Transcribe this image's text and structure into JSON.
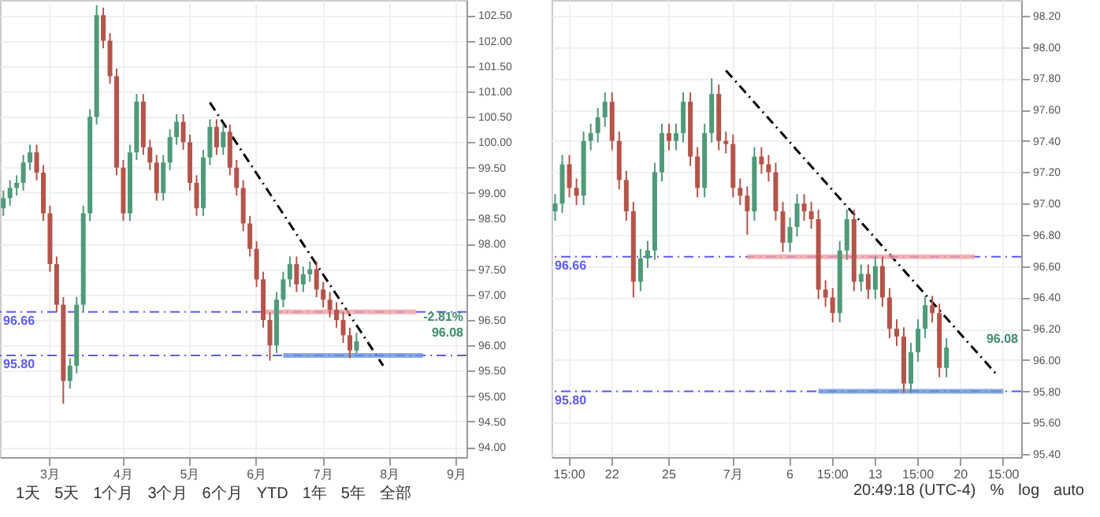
{
  "chart_data": [
    {
      "type": "candlestick",
      "categories": [
        null,
        null,
        null,
        null,
        null,
        null,
        null,
        "3月",
        null,
        null,
        null,
        null,
        null,
        null,
        null,
        null,
        null,
        null,
        "4月",
        null,
        null,
        null,
        null,
        null,
        null,
        null,
        null,
        null,
        "5月",
        null,
        null,
        null,
        null,
        null,
        null,
        null,
        null,
        null,
        "6月",
        null,
        null,
        null,
        null,
        null,
        null,
        null,
        null,
        null,
        "7月",
        null,
        null,
        null,
        null,
        null,
        null,
        null,
        null,
        null,
        "8月",
        null,
        null,
        null,
        null,
        null,
        null,
        null,
        null,
        null,
        "9月",
        null
      ],
      "ohlc": [
        [
          98.7,
          99.05,
          98.55,
          98.9
        ],
        [
          98.9,
          99.25,
          98.75,
          99.1
        ],
        [
          99.1,
          99.35,
          98.95,
          99.2
        ],
        [
          99.2,
          99.75,
          99.05,
          99.6
        ],
        [
          99.6,
          99.95,
          99.45,
          99.8
        ],
        [
          99.8,
          99.95,
          99.25,
          99.4
        ],
        [
          99.4,
          99.55,
          98.45,
          98.6
        ],
        [
          98.6,
          98.75,
          97.45,
          97.6
        ],
        [
          97.6,
          97.75,
          96.65,
          96.8
        ],
        [
          96.8,
          96.95,
          94.85,
          95.3
        ],
        [
          95.3,
          95.75,
          95.15,
          95.6
        ],
        [
          95.6,
          96.95,
          95.45,
          96.8
        ],
        [
          96.8,
          98.75,
          96.65,
          98.6
        ],
        [
          98.6,
          100.65,
          98.45,
          100.5
        ],
        [
          100.5,
          102.7,
          100.35,
          102.5
        ],
        [
          102.5,
          102.65,
          101.85,
          102.0
        ],
        [
          102.0,
          102.15,
          101.15,
          101.3
        ],
        [
          101.3,
          101.45,
          99.35,
          99.5
        ],
        [
          99.5,
          99.65,
          98.45,
          98.6
        ],
        [
          98.6,
          99.95,
          98.45,
          99.8
        ],
        [
          99.8,
          100.95,
          99.65,
          100.8
        ],
        [
          100.8,
          100.95,
          99.75,
          99.9
        ],
        [
          99.9,
          100.05,
          99.45,
          99.6
        ],
        [
          99.6,
          99.75,
          98.85,
          99.0
        ],
        [
          99.0,
          99.75,
          98.85,
          99.6
        ],
        [
          99.6,
          100.25,
          99.45,
          100.1
        ],
        [
          100.1,
          100.55,
          99.95,
          100.4
        ],
        [
          100.4,
          100.55,
          99.85,
          100.0
        ],
        [
          100.0,
          100.15,
          99.05,
          99.2
        ],
        [
          99.2,
          99.35,
          98.55,
          98.7
        ],
        [
          98.7,
          99.85,
          98.55,
          99.7
        ],
        [
          99.7,
          100.45,
          99.55,
          100.3
        ],
        [
          100.3,
          100.45,
          99.75,
          99.9
        ],
        [
          99.9,
          100.35,
          99.75,
          100.2
        ],
        [
          100.2,
          100.35,
          99.35,
          99.5
        ],
        [
          99.5,
          99.65,
          98.95,
          99.1
        ],
        [
          99.1,
          99.25,
          98.25,
          98.4
        ],
        [
          98.4,
          98.55,
          97.75,
          97.9
        ],
        [
          97.9,
          98.05,
          97.15,
          97.3
        ],
        [
          97.3,
          97.45,
          96.35,
          96.5
        ],
        [
          96.5,
          96.65,
          95.7,
          96.0
        ],
        [
          96.0,
          97.05,
          95.85,
          96.9
        ],
        [
          96.9,
          97.45,
          96.75,
          97.3
        ],
        [
          97.3,
          97.75,
          97.15,
          97.6
        ],
        [
          97.6,
          97.75,
          97.05,
          97.2
        ],
        [
          97.2,
          97.55,
          97.05,
          97.4
        ],
        [
          97.4,
          97.65,
          97.25,
          97.5
        ],
        [
          97.5,
          97.65,
          96.95,
          97.1
        ],
        [
          97.1,
          97.25,
          96.75,
          96.9
        ],
        [
          96.9,
          97.05,
          96.55,
          96.7
        ],
        [
          96.7,
          96.85,
          96.35,
          96.5
        ],
        [
          96.5,
          96.65,
          96.05,
          96.2
        ],
        [
          96.2,
          96.35,
          95.75,
          95.9
        ],
        [
          95.9,
          96.25,
          95.85,
          96.08
        ],
        null,
        null,
        null,
        null,
        null,
        null,
        null,
        null,
        null,
        null,
        null,
        null,
        null,
        null,
        null,
        null
      ],
      "series": [
        {
          "type": "line",
          "color": "#000000",
          "line_style": "dashed",
          "values": [
            null,
            null,
            null,
            null,
            null,
            null,
            null,
            null,
            null,
            null,
            null,
            null,
            null,
            null,
            null,
            null,
            null,
            null,
            null,
            null,
            null,
            null,
            null,
            null,
            null,
            null,
            null,
            null,
            null,
            null,
            null,
            100.78,
            null,
            null,
            null,
            null,
            null,
            null,
            null,
            null,
            null,
            null,
            null,
            null,
            null,
            null,
            null,
            null,
            null,
            null,
            null,
            null,
            null,
            null,
            null,
            null,
            null,
            95.6,
            null,
            null,
            null,
            null,
            null,
            null,
            null,
            null,
            null,
            null,
            null,
            null
          ]
        },
        {
          "type": "line",
          "color": "#f4a0a0",
          "line_style": "solid",
          "values": [
            null,
            null,
            null,
            null,
            null,
            null,
            null,
            null,
            null,
            null,
            null,
            null,
            null,
            null,
            null,
            null,
            null,
            null,
            null,
            null,
            null,
            null,
            null,
            null,
            null,
            null,
            null,
            null,
            null,
            null,
            null,
            null,
            null,
            null,
            null,
            null,
            null,
            null,
            null,
            96.66,
            null,
            null,
            null,
            null,
            null,
            null,
            null,
            null,
            null,
            null,
            null,
            null,
            null,
            null,
            null,
            null,
            null,
            null,
            null,
            null,
            null,
            null,
            96.66,
            null,
            null,
            null,
            null,
            null,
            null,
            null
          ]
        },
        {
          "type": "line",
          "color": "#6a95d8",
          "line_style": "solid",
          "values": [
            null,
            null,
            null,
            null,
            null,
            null,
            null,
            null,
            null,
            null,
            null,
            null,
            null,
            null,
            null,
            null,
            null,
            null,
            null,
            null,
            null,
            null,
            null,
            null,
            null,
            null,
            null,
            null,
            null,
            null,
            null,
            null,
            null,
            null,
            null,
            null,
            null,
            null,
            null,
            null,
            null,
            null,
            95.8,
            null,
            null,
            null,
            null,
            null,
            null,
            null,
            null,
            null,
            null,
            null,
            null,
            null,
            null,
            null,
            null,
            null,
            null,
            null,
            null,
            95.8,
            null,
            null,
            null,
            null,
            null,
            null
          ]
        }
      ],
      "ref_lines": [
        {
          "axis": "y",
          "value": 96.66,
          "label": "96.66",
          "color": "#5b5bf5",
          "line_style": "dashed"
        },
        {
          "axis": "y",
          "value": 95.8,
          "label": "95.80",
          "color": "#5b5bf5",
          "line_style": "dashed"
        }
      ],
      "annotations": [
        "-2.81%",
        "96.08"
      ],
      "ylim": [
        93.8,
        102.8
      ],
      "yticks": [
        {
          "value": 94,
          "label": "94.00"
        },
        {
          "value": 94.5,
          "label": "94.50"
        },
        {
          "value": 95,
          "label": "95.00"
        },
        {
          "value": 95.5,
          "label": "95.50"
        },
        {
          "value": 96,
          "label": "96.00"
        },
        {
          "value": 96.5,
          "label": "96.50"
        },
        {
          "value": 97,
          "label": "97.00"
        },
        {
          "value": 97.5,
          "label": "97.50"
        },
        {
          "value": 98,
          "label": "98.00"
        },
        {
          "value": 98.5,
          "label": "98.50"
        },
        {
          "value": 99,
          "label": "99.00"
        },
        {
          "value": 99.5,
          "label": "99.50"
        },
        {
          "value": 100,
          "label": "100.00"
        },
        {
          "value": 100.5,
          "label": "100.50"
        },
        {
          "value": 101,
          "label": "101.00"
        },
        {
          "value": 101.5,
          "label": "101.50"
        },
        {
          "value": 102,
          "label": "102.00"
        },
        {
          "value": 102.5,
          "label": "102.50"
        }
      ],
      "grid": true
    },
    {
      "type": "candlestick",
      "categories": [
        null,
        null,
        "15:00",
        null,
        null,
        null,
        null,
        null,
        "22",
        null,
        null,
        null,
        null,
        null,
        null,
        null,
        "25",
        null,
        null,
        null,
        null,
        null,
        null,
        null,
        null,
        "7月",
        null,
        null,
        null,
        null,
        null,
        null,
        null,
        "6",
        null,
        null,
        null,
        null,
        null,
        "15:00",
        null,
        null,
        null,
        null,
        null,
        "13",
        null,
        null,
        null,
        null,
        null,
        "15:00",
        null,
        null,
        null,
        null,
        null,
        "20",
        null,
        null,
        null,
        null,
        null,
        "15:00",
        null,
        null
      ],
      "ohlc": [
        [
          96.95,
          97.06,
          96.89,
          97.0
        ],
        [
          97.0,
          97.31,
          96.94,
          97.25
        ],
        [
          97.25,
          97.31,
          97.04,
          97.1
        ],
        [
          97.1,
          97.16,
          96.99,
          97.05
        ],
        [
          97.05,
          97.46,
          96.99,
          97.4
        ],
        [
          97.4,
          97.51,
          97.34,
          97.45
        ],
        [
          97.45,
          97.61,
          97.39,
          97.55
        ],
        [
          97.55,
          97.71,
          97.49,
          97.65
        ],
        [
          97.65,
          97.71,
          97.34,
          97.4
        ],
        [
          97.4,
          97.46,
          97.09,
          97.15
        ],
        [
          97.15,
          97.21,
          96.89,
          96.95
        ],
        [
          96.95,
          97.01,
          96.4,
          96.5
        ],
        [
          96.5,
          96.71,
          96.44,
          96.65
        ],
        [
          96.65,
          96.76,
          96.59,
          96.7
        ],
        [
          96.7,
          97.26,
          96.64,
          97.2
        ],
        [
          97.2,
          97.51,
          97.14,
          97.45
        ],
        [
          97.45,
          97.51,
          97.34,
          97.4
        ],
        [
          97.4,
          97.51,
          97.34,
          97.45
        ],
        [
          97.45,
          97.71,
          97.39,
          97.65
        ],
        [
          97.65,
          97.71,
          97.24,
          97.3
        ],
        [
          97.3,
          97.36,
          97.04,
          97.1
        ],
        [
          97.1,
          97.51,
          97.04,
          97.45
        ],
        [
          97.45,
          97.8,
          97.39,
          97.7
        ],
        [
          97.7,
          97.76,
          97.34,
          97.4
        ],
        [
          97.4,
          97.46,
          97.32,
          97.38
        ],
        [
          97.38,
          97.44,
          97.04,
          97.1
        ],
        [
          97.1,
          97.16,
          96.99,
          97.05
        ],
        [
          97.05,
          97.11,
          96.8,
          96.95
        ],
        [
          96.95,
          97.36,
          96.89,
          97.3
        ],
        [
          97.3,
          97.36,
          97.19,
          97.25
        ],
        [
          97.25,
          97.31,
          97.14,
          97.2
        ],
        [
          97.2,
          97.26,
          96.89,
          96.95
        ],
        [
          96.95,
          97.01,
          96.69,
          96.75
        ],
        [
          96.75,
          96.91,
          96.69,
          96.85
        ],
        [
          96.85,
          97.06,
          96.79,
          97.0
        ],
        [
          97.0,
          97.06,
          96.89,
          96.95
        ],
        [
          96.95,
          97.01,
          96.84,
          96.9
        ],
        [
          96.9,
          96.96,
          96.39,
          96.45
        ],
        [
          96.45,
          96.51,
          96.34,
          96.4
        ],
        [
          96.4,
          96.46,
          96.24,
          96.3
        ],
        [
          96.3,
          96.76,
          96.24,
          96.7
        ],
        [
          96.7,
          96.96,
          96.64,
          96.9
        ],
        [
          96.9,
          96.96,
          96.44,
          96.5
        ],
        [
          96.5,
          96.61,
          96.44,
          96.55
        ],
        [
          96.55,
          96.61,
          96.39,
          96.45
        ],
        [
          96.45,
          96.66,
          96.39,
          96.6
        ],
        [
          96.6,
          96.66,
          96.34,
          96.4
        ],
        [
          96.4,
          96.46,
          96.14,
          96.2
        ],
        [
          96.2,
          96.26,
          96.09,
          96.15
        ],
        [
          96.15,
          96.21,
          95.79,
          95.85
        ],
        [
          95.85,
          96.11,
          95.79,
          96.05
        ],
        [
          96.05,
          96.26,
          95.99,
          96.2
        ],
        [
          96.2,
          96.41,
          96.14,
          96.35
        ],
        [
          96.35,
          96.41,
          96.24,
          96.3
        ],
        [
          96.3,
          96.36,
          95.89,
          95.95
        ],
        [
          95.95,
          96.14,
          95.89,
          96.08
        ],
        null,
        null,
        null,
        null,
        null,
        null,
        null,
        null,
        null,
        null
      ],
      "series": [
        {
          "type": "line",
          "color": "#000000",
          "line_style": "dashed",
          "values": [
            null,
            null,
            null,
            null,
            null,
            null,
            null,
            null,
            null,
            null,
            null,
            null,
            null,
            null,
            null,
            null,
            null,
            null,
            null,
            null,
            null,
            null,
            null,
            null,
            97.85,
            null,
            null,
            null,
            null,
            null,
            null,
            null,
            null,
            null,
            null,
            null,
            null,
            null,
            null,
            null,
            null,
            null,
            null,
            null,
            null,
            null,
            null,
            null,
            null,
            null,
            null,
            null,
            null,
            null,
            null,
            null,
            null,
            null,
            null,
            null,
            null,
            null,
            95.91,
            null,
            null,
            null
          ]
        },
        {
          "type": "line",
          "color": "#f4a0a0",
          "line_style": "solid",
          "values": [
            null,
            null,
            null,
            null,
            null,
            null,
            null,
            null,
            null,
            null,
            null,
            null,
            null,
            null,
            null,
            null,
            null,
            null,
            null,
            null,
            null,
            null,
            null,
            null,
            null,
            null,
            null,
            96.66,
            null,
            null,
            null,
            null,
            null,
            null,
            null,
            null,
            null,
            null,
            null,
            null,
            null,
            null,
            null,
            null,
            null,
            null,
            null,
            null,
            null,
            null,
            null,
            null,
            null,
            null,
            null,
            null,
            null,
            null,
            null,
            96.66,
            null,
            null,
            null,
            null,
            null,
            null
          ]
        },
        {
          "type": "line",
          "color": "#6a95d8",
          "line_style": "solid",
          "values": [
            null,
            null,
            null,
            null,
            null,
            null,
            null,
            null,
            null,
            null,
            null,
            null,
            null,
            null,
            null,
            null,
            null,
            null,
            null,
            null,
            null,
            null,
            null,
            null,
            null,
            null,
            null,
            null,
            null,
            null,
            null,
            null,
            null,
            null,
            null,
            null,
            null,
            95.8,
            null,
            null,
            null,
            null,
            null,
            null,
            null,
            null,
            null,
            null,
            null,
            null,
            null,
            null,
            null,
            null,
            null,
            null,
            null,
            null,
            null,
            null,
            null,
            null,
            null,
            95.8,
            null,
            null
          ]
        }
      ],
      "ref_lines": [
        {
          "axis": "y",
          "value": 96.66,
          "label": "96.66",
          "color": "#5b5bf5",
          "line_style": "dashed"
        },
        {
          "axis": "y",
          "value": 95.8,
          "label": "95.80",
          "color": "#5b5bf5",
          "line_style": "dashed"
        }
      ],
      "annotations": [
        "96.08"
      ],
      "ylim": [
        95.38,
        98.3
      ],
      "yticks": [
        {
          "value": 95.4,
          "label": "95.40"
        },
        {
          "value": 95.6,
          "label": "95.60"
        },
        {
          "value": 95.8,
          "label": "95.80"
        },
        {
          "value": 96,
          "label": "96.00"
        },
        {
          "value": 96.2,
          "label": "96.20"
        },
        {
          "value": 96.4,
          "label": "96.40"
        },
        {
          "value": 96.6,
          "label": "96.60"
        },
        {
          "value": 96.8,
          "label": "96.80"
        },
        {
          "value": 97,
          "label": "97.00"
        },
        {
          "value": 97.2,
          "label": "97.20"
        },
        {
          "value": 97.4,
          "label": "97.40"
        },
        {
          "value": 97.6,
          "label": "97.60"
        },
        {
          "value": 97.8,
          "label": "97.80"
        },
        {
          "value": 98,
          "label": "98.00"
        },
        {
          "value": 98.2,
          "label": "98.20"
        }
      ],
      "grid": true
    },
    {
      "type": "other",
      "annotations": [
        "1天",
        "5天",
        "1个月",
        "3个月",
        "6个月",
        "YTD",
        "1年",
        "5年",
        "全部"
      ]
    },
    {
      "type": "other",
      "annotations": [
        "20:49:18 (UTC-4)",
        "%",
        "log",
        "auto"
      ]
    }
  ]
}
